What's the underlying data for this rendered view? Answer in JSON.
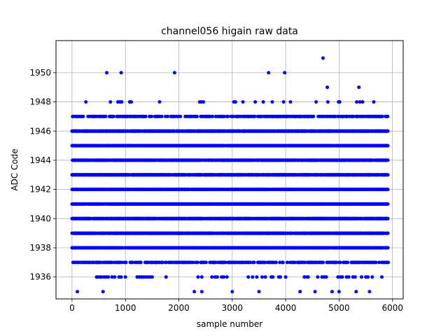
{
  "chart_data": {
    "type": "scatter",
    "title": "channel056 higain raw data",
    "xlabel": "sample number",
    "ylabel": "ADC Code",
    "xlim": [
      -300,
      6200
    ],
    "ylim": [
      1934.5,
      1952.2
    ],
    "xticks": [
      0,
      1000,
      2000,
      3000,
      4000,
      5000,
      6000
    ],
    "yticks": [
      1936,
      1938,
      1940,
      1942,
      1944,
      1946,
      1948,
      1950
    ],
    "grid": true,
    "marker_color": "#0000ff",
    "n_samples": 5920,
    "dense_levels": [
      1938,
      1939,
      1940,
      1941,
      1942,
      1943,
      1944,
      1945,
      1946
    ],
    "medium_levels": [
      1937,
      1947
    ],
    "sparse_points": [
      {
        "y": 1936,
        "x": [
          460,
          480,
          520,
          550,
          600,
          640,
          680,
          750,
          800,
          880,
          920,
          1000,
          1220,
          1260,
          1300,
          1340,
          1380,
          1420,
          1460,
          1500,
          1760,
          2360,
          2430,
          2620,
          2680,
          2720,
          2800,
          2840,
          2900,
          3300,
          3380,
          3460,
          3560,
          3620,
          3730,
          3760,
          3870,
          3900,
          4000,
          4350,
          4400,
          4420,
          4600,
          4680,
          4720,
          4760,
          4980,
          5030,
          5060,
          5140,
          5180,
          5260,
          5300,
          5420,
          5500,
          5540,
          5620,
          5800
        ]
      },
      {
        "y": 1935,
        "x": [
          100,
          580,
          2290,
          2430,
          3000,
          3500,
          4270,
          4550,
          4870,
          5000,
          5320,
          5570
        ]
      },
      {
        "y": 1948,
        "x": [
          260,
          720,
          860,
          900,
          930,
          1080,
          1110,
          1640,
          2390,
          2420,
          2460,
          3030,
          3060,
          3200,
          3430,
          3580,
          3750,
          3960,
          4090,
          4570,
          4790,
          4990,
          5010,
          5330,
          5390,
          5440,
          5650
        ]
      },
      {
        "y": 1950,
        "x": [
          650,
          920,
          1920,
          3680,
          3980
        ]
      },
      {
        "y": 1949,
        "x": [
          4780,
          5370
        ]
      },
      {
        "y": 1951,
        "x": [
          4700
        ]
      }
    ]
  }
}
